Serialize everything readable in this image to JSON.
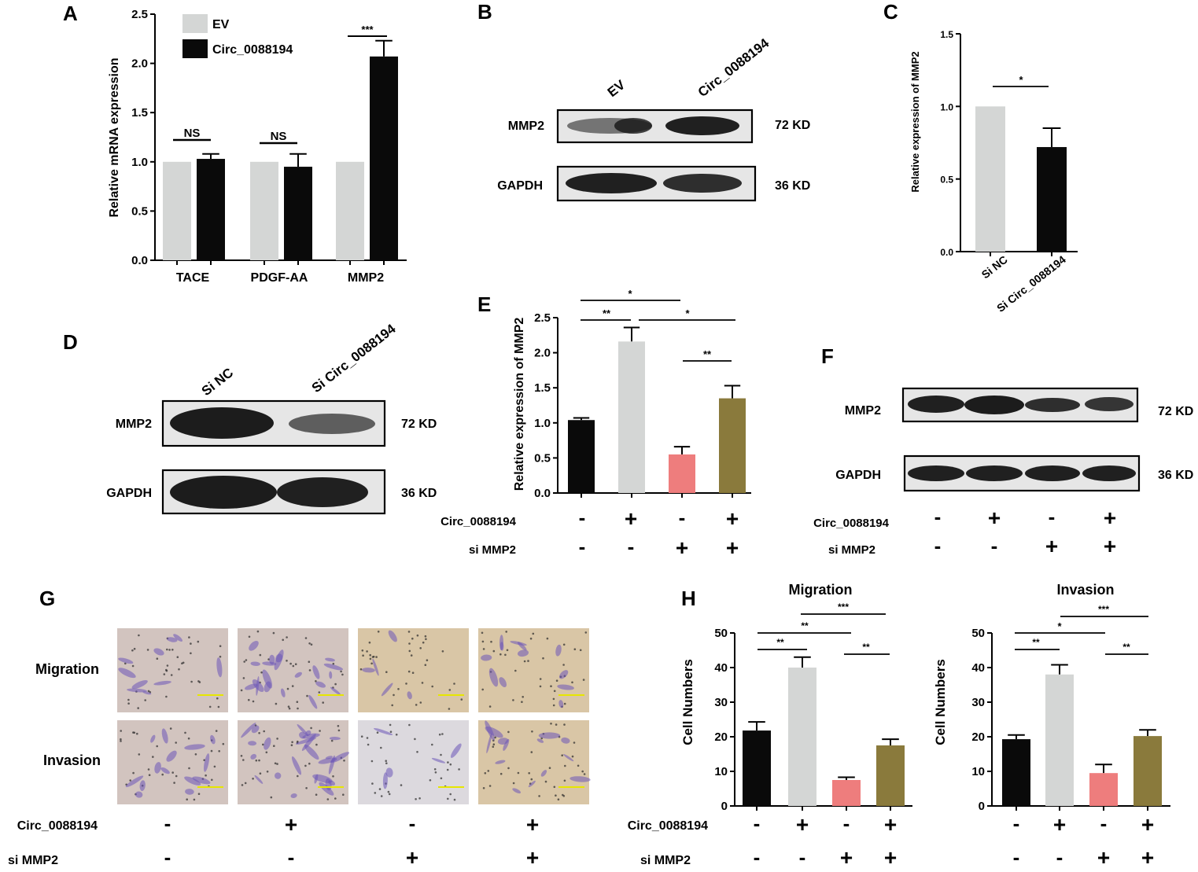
{
  "panels": {
    "A": "A",
    "B": "B",
    "C": "C",
    "D": "D",
    "E": "E",
    "F": "F",
    "G": "G",
    "H": "H"
  },
  "colors": {
    "black": "#0a0a0a",
    "grey": "#d4d6d5",
    "pink": "#ee7d7d",
    "olive": "#8a7a3c",
    "blot_bg": "#e6e6e6",
    "band": "#151515",
    "membrane": "#c9b592",
    "stain": "#6c55b8",
    "scale_bar": "#e6e600"
  },
  "chart_data": [
    {
      "id": "A",
      "type": "bar",
      "categories": [
        "TACE",
        "PDGF-AA",
        "MMP2"
      ],
      "series": [
        {
          "name": "EV",
          "values": [
            1.0,
            1.0,
            1.0
          ],
          "errors": [
            0,
            0,
            0
          ]
        },
        {
          "name": "Circ_0088194",
          "values": [
            1.03,
            0.95,
            2.07
          ],
          "errors": [
            0.05,
            0.13,
            0.16
          ]
        }
      ],
      "ylabel": "Relative mRNA expression",
      "ylim": [
        0,
        2.5
      ],
      "yticks": [
        "0.0",
        "0.5",
        "1.0",
        "1.5",
        "2.0",
        "2.5"
      ],
      "annotations": [
        "NS",
        "NS",
        "***"
      ],
      "legend": "top-left"
    },
    {
      "id": "C",
      "type": "bar",
      "categories": [
        "Si NC",
        "Si Circ_0088194"
      ],
      "values": [
        1.0,
        0.72
      ],
      "errors": [
        0,
        0.13
      ],
      "ylabel": "Relative expression of MMP2",
      "ylim": [
        0,
        1.5
      ],
      "yticks": [
        "0.0",
        "0.5",
        "1.0",
        "1.5"
      ],
      "annotations": [
        "*"
      ]
    },
    {
      "id": "E",
      "type": "bar",
      "values": [
        1.04,
        2.16,
        0.55,
        1.35
      ],
      "errors": [
        0.03,
        0.2,
        0.11,
        0.18
      ],
      "ylabel": "Relative expression of MMP2",
      "ylim": [
        0,
        2.5
      ],
      "yticks": [
        "0.0",
        "0.5",
        "1.0",
        "1.5",
        "2.0",
        "2.5"
      ],
      "annotations": [
        "*",
        "**",
        "*",
        "**"
      ]
    },
    {
      "id": "H1",
      "type": "bar",
      "title": "Migration",
      "values": [
        21.8,
        40.0,
        7.5,
        17.5
      ],
      "errors": [
        2.5,
        3.0,
        0.8,
        1.8
      ],
      "ylabel": "Cell Numbers",
      "ylim": [
        0,
        50
      ],
      "yticks": [
        "0",
        "10",
        "20",
        "30",
        "40",
        "50"
      ],
      "annotations": [
        "***",
        "**",
        "**",
        "**"
      ]
    },
    {
      "id": "H2",
      "type": "bar",
      "title": "Invasion",
      "values": [
        19.3,
        38.0,
        9.5,
        20.2
      ],
      "errors": [
        1.2,
        2.8,
        2.5,
        1.8
      ],
      "ylabel": "Cell Numbers",
      "ylim": [
        0,
        50
      ],
      "yticks": [
        "0",
        "10",
        "20",
        "30",
        "40",
        "50"
      ],
      "annotations": [
        "***",
        "*",
        "**",
        "**"
      ]
    }
  ],
  "blot_B": {
    "lanes": [
      "EV",
      "Circ_0088194"
    ],
    "rows": [
      "MMP2",
      "GAPDH"
    ],
    "sizes": [
      "72 KD",
      "36 KD"
    ]
  },
  "blot_D": {
    "lanes": [
      "Si NC",
      "Si Circ_0088194"
    ],
    "rows": [
      "MMP2",
      "GAPDH"
    ],
    "sizes": [
      "72 KD",
      "36 KD"
    ]
  },
  "blot_F": {
    "rows": [
      "MMP2",
      "GAPDH"
    ],
    "sizes": [
      "72 KD",
      "36 KD"
    ]
  },
  "treatment_rows": {
    "circ": "Circ_0088194",
    "si": "si MMP2",
    "circ_signs": [
      "-",
      "+",
      "-",
      "+"
    ],
    "si_signs": [
      "-",
      "-",
      "+",
      "+"
    ]
  },
  "micro_G": {
    "rows": [
      "Migration",
      "Invasion"
    ]
  }
}
